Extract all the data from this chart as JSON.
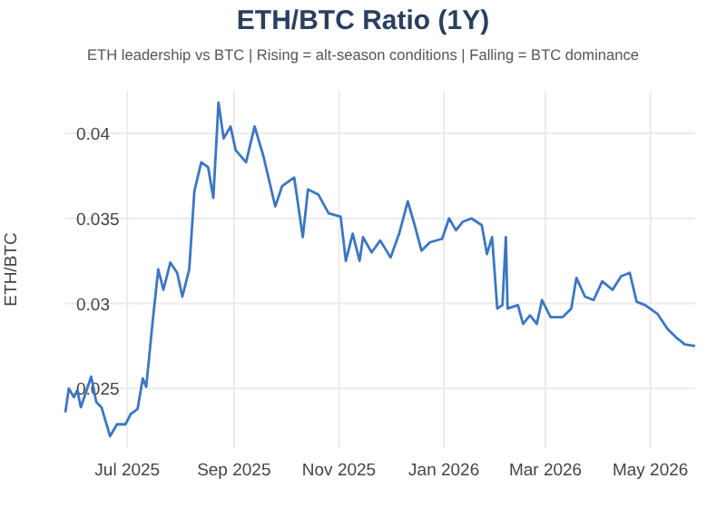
{
  "chart_data": {
    "type": "line",
    "title": "ETH/BTC Ratio (1Y)",
    "subtitle": "ETH leadership vs BTC | Rising = alt-season conditions | Falling = BTC dominance",
    "ylabel": "ETH/BTC",
    "grid": true,
    "line_style": "solid",
    "marker": "none",
    "xlim": [
      "2025-05-26",
      "2026-05-27"
    ],
    "ylim": [
      0.0215,
      0.0425
    ],
    "xticks": [
      {
        "value": "2025-07-01",
        "label": "Jul 2025"
      },
      {
        "value": "2025-09-01",
        "label": "Sep 2025"
      },
      {
        "value": "2025-11-01",
        "label": "Nov 2025"
      },
      {
        "value": "2026-01-01",
        "label": "Jan 2026"
      },
      {
        "value": "2026-03-01",
        "label": "Mar 2026"
      },
      {
        "value": "2026-05-01",
        "label": "May 2026"
      }
    ],
    "yticks": [
      0.025,
      0.03,
      0.035,
      0.04
    ],
    "series": [
      {
        "color": "#3c76c4",
        "x": [
          "2025-05-26",
          "2025-05-28",
          "2025-05-31",
          "2025-06-02",
          "2025-06-04",
          "2025-06-10",
          "2025-06-13",
          "2025-06-16",
          "2025-06-21",
          "2025-06-25",
          "2025-06-30",
          "2025-07-03",
          "2025-07-07",
          "2025-07-10",
          "2025-07-12",
          "2025-07-16",
          "2025-07-19",
          "2025-07-22",
          "2025-07-26",
          "2025-07-30",
          "2025-08-02",
          "2025-08-06",
          "2025-08-09",
          "2025-08-13",
          "2025-08-17",
          "2025-08-20",
          "2025-08-23",
          "2025-08-26",
          "2025-08-30",
          "2025-09-02",
          "2025-09-08",
          "2025-09-13",
          "2025-09-18",
          "2025-09-25",
          "2025-09-29",
          "2025-10-06",
          "2025-10-11",
          "2025-10-14",
          "2025-10-20",
          "2025-10-26",
          "2025-11-02",
          "2025-11-05",
          "2025-11-09",
          "2025-11-13",
          "2025-11-15",
          "2025-11-20",
          "2025-11-25",
          "2025-12-01",
          "2025-12-06",
          "2025-12-11",
          "2025-12-15",
          "2025-12-19",
          "2025-12-24",
          "2025-12-31",
          "2026-01-04",
          "2026-01-08",
          "2026-01-12",
          "2026-01-17",
          "2026-01-23",
          "2026-01-26",
          "2026-01-29",
          "2026-02-01",
          "2026-02-04",
          "2026-02-06",
          "2026-02-07",
          "2026-02-13",
          "2026-02-16",
          "2026-02-20",
          "2026-02-24",
          "2026-02-27",
          "2026-03-04",
          "2026-03-11",
          "2026-03-16",
          "2026-03-19",
          "2026-03-24",
          "2026-03-29",
          "2026-04-03",
          "2026-04-09",
          "2026-04-14",
          "2026-04-19",
          "2026-04-23",
          "2026-04-28",
          "2026-05-05",
          "2026-05-11",
          "2026-05-16",
          "2026-05-21",
          "2026-05-27"
        ],
        "values": [
          0.0236,
          0.025,
          0.0245,
          0.0249,
          0.0239,
          0.0257,
          0.0242,
          0.0239,
          0.0222,
          0.0229,
          0.0229,
          0.0235,
          0.0238,
          0.0256,
          0.0251,
          0.0292,
          0.032,
          0.0308,
          0.0324,
          0.0318,
          0.0304,
          0.032,
          0.0366,
          0.0383,
          0.038,
          0.0362,
          0.0418,
          0.0397,
          0.0404,
          0.039,
          0.0383,
          0.0404,
          0.0387,
          0.0357,
          0.0369,
          0.0374,
          0.0339,
          0.0367,
          0.0364,
          0.0353,
          0.0351,
          0.0325,
          0.0341,
          0.0325,
          0.0339,
          0.033,
          0.0337,
          0.0327,
          0.0341,
          0.036,
          0.0346,
          0.0331,
          0.0336,
          0.0338,
          0.035,
          0.0343,
          0.0348,
          0.035,
          0.0346,
          0.0329,
          0.0339,
          0.0297,
          0.0299,
          0.0339,
          0.0297,
          0.0299,
          0.0288,
          0.0293,
          0.0288,
          0.0302,
          0.0292,
          0.0292,
          0.0297,
          0.0315,
          0.0304,
          0.0302,
          0.0313,
          0.0308,
          0.0316,
          0.0318,
          0.0301,
          0.0299,
          0.0294,
          0.0285,
          0.028,
          0.0276,
          0.0275
        ]
      }
    ]
  }
}
